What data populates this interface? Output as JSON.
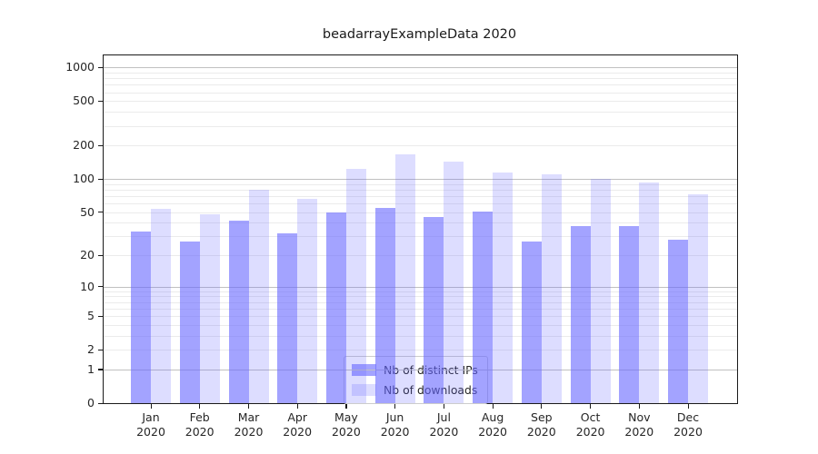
{
  "page": {
    "background": "#ffffff"
  },
  "chart_data": {
    "type": "bar",
    "title": "beadarrayExampleData 2020",
    "categories": [
      "Jan",
      "Feb",
      "Mar",
      "Apr",
      "May",
      "Jun",
      "Jul",
      "Aug",
      "Sep",
      "Oct",
      "Nov",
      "Dec"
    ],
    "category_year": "2020",
    "series": [
      {
        "name": "Nb of distinct IPs",
        "color": "#6666ff",
        "alpha": 0.6,
        "values": [
          33,
          27,
          42,
          32,
          50,
          55,
          45,
          51,
          27,
          37,
          37,
          28
        ]
      },
      {
        "name": "Nb of downloads",
        "color": "#6666ff",
        "alpha": 0.22,
        "values": [
          54,
          48,
          80,
          66,
          122,
          165,
          143,
          114,
          110,
          100,
          92,
          73
        ]
      }
    ],
    "xlabel": "",
    "ylabel": "",
    "yscale": "log1p",
    "ylim": [
      0,
      1280
    ],
    "yticks": [
      0,
      1,
      2,
      5,
      10,
      20,
      50,
      100,
      200,
      500,
      1000
    ],
    "grid": {
      "enabled": true,
      "major_values": [
        1,
        10,
        100,
        1000
      ],
      "minor_values": [
        2,
        3,
        4,
        5,
        6,
        7,
        8,
        9,
        20,
        30,
        40,
        50,
        60,
        70,
        80,
        90,
        200,
        300,
        400,
        500,
        600,
        700,
        800,
        900
      ],
      "major_color": "#c0c0c0",
      "minor_color": "#ebebeb"
    },
    "legend": {
      "position": "lower center"
    }
  }
}
